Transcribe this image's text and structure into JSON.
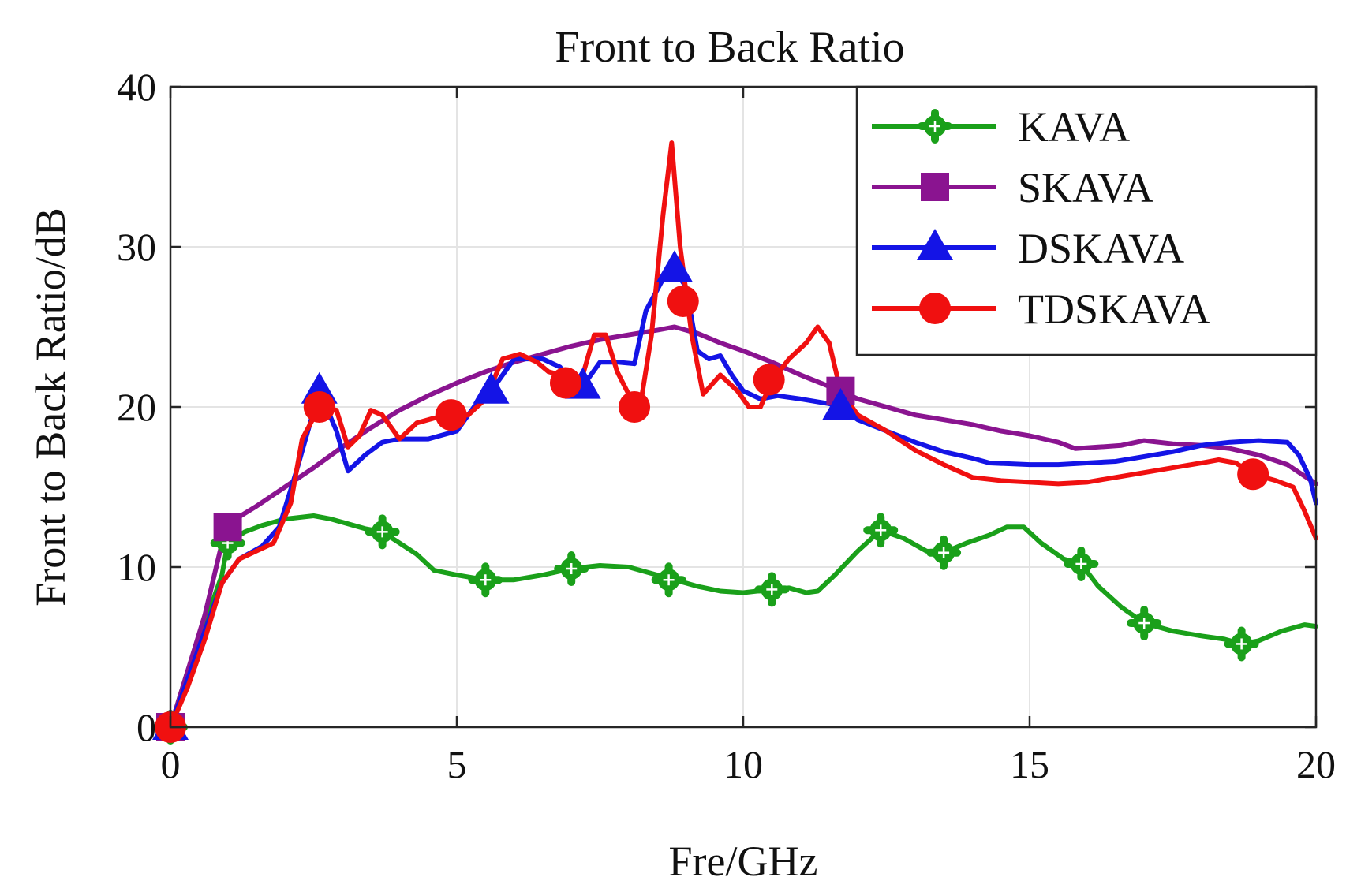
{
  "chart_data": {
    "type": "line",
    "title": "Front to Back Ratio",
    "xlabel": "Fre/GHz",
    "ylabel": "Front to Back Ratio/dB",
    "xlim": [
      0,
      20
    ],
    "ylim": [
      0,
      40
    ],
    "xticks": [
      0,
      5,
      10,
      15,
      20
    ],
    "yticks": [
      0,
      10,
      20,
      30,
      40
    ],
    "grid": true,
    "legend_position": "top-right",
    "series": [
      {
        "name": "KAVA",
        "color": "#1aa01a",
        "marker": "plus-circle",
        "x": [
          0,
          0.3,
          0.6,
          0.9,
          1.0,
          1.3,
          1.6,
          2.0,
          2.5,
          2.8,
          3.1,
          3.4,
          3.7,
          4.0,
          4.3,
          4.6,
          5.0,
          5.5,
          6.0,
          6.5,
          7.0,
          7.5,
          8.0,
          8.5,
          8.8,
          9.2,
          9.6,
          10.0,
          10.5,
          10.8,
          11.1,
          11.3,
          11.6,
          12.0,
          12.4,
          12.8,
          13.2,
          13.5,
          13.9,
          14.3,
          14.6,
          14.9,
          15.2,
          15.6,
          15.9,
          16.2,
          16.6,
          17.0,
          17.5,
          18.0,
          18.4,
          18.7,
          19.0,
          19.4,
          19.8,
          20.0
        ],
        "y": [
          0,
          3.5,
          6.5,
          9.5,
          11.5,
          12.2,
          12.6,
          13.0,
          13.2,
          13.0,
          12.7,
          12.4,
          12.2,
          11.5,
          10.8,
          9.8,
          9.5,
          9.2,
          9.2,
          9.5,
          9.9,
          10.1,
          10.0,
          9.5,
          9.2,
          8.8,
          8.5,
          8.4,
          8.6,
          8.7,
          8.4,
          8.5,
          9.5,
          11.0,
          12.3,
          11.8,
          11.0,
          10.9,
          11.5,
          12.0,
          12.5,
          12.5,
          11.5,
          10.5,
          10.2,
          8.8,
          7.5,
          6.5,
          6.0,
          5.7,
          5.5,
          5.2,
          5.4,
          6.0,
          6.4,
          6.3
        ],
        "markers_x": [
          0,
          1.0,
          3.7,
          5.5,
          7.0,
          8.7,
          10.5,
          12.4,
          13.5,
          15.9,
          17.0,
          18.7
        ],
        "markers_y": [
          0,
          11.5,
          12.2,
          9.2,
          9.9,
          9.2,
          8.6,
          12.3,
          10.9,
          10.2,
          6.5,
          5.2
        ]
      },
      {
        "name": "SKAVA",
        "color": "#8a1490",
        "marker": "square",
        "x": [
          0,
          0.3,
          0.6,
          0.9,
          1.0,
          1.5,
          2.0,
          2.5,
          3.0,
          3.5,
          4.0,
          4.5,
          5.0,
          5.5,
          6.0,
          6.5,
          7.0,
          7.5,
          8.0,
          8.5,
          8.8,
          9.2,
          9.6,
          10.0,
          10.5,
          11.0,
          11.7,
          12.0,
          12.5,
          13.0,
          13.5,
          14.0,
          14.5,
          15.0,
          15.5,
          15.8,
          16.2,
          16.6,
          17.0,
          17.5,
          18.0,
          18.5,
          19.0,
          19.5,
          20.0
        ],
        "y": [
          0,
          3.5,
          7.0,
          11.5,
          12.7,
          13.8,
          15.0,
          16.2,
          17.5,
          18.7,
          19.8,
          20.7,
          21.5,
          22.2,
          22.8,
          23.3,
          23.8,
          24.2,
          24.5,
          24.8,
          25.0,
          24.6,
          24.0,
          23.5,
          22.8,
          22.0,
          21.0,
          20.5,
          20.0,
          19.5,
          19.2,
          18.9,
          18.5,
          18.2,
          17.8,
          17.4,
          17.5,
          17.6,
          17.9,
          17.7,
          17.6,
          17.4,
          17.0,
          16.4,
          15.2
        ],
        "markers_x": [
          0,
          1.0,
          11.7
        ],
        "markers_y": [
          0,
          12.5,
          21.0
        ]
      },
      {
        "name": "DSKAVA",
        "color": "#1414e6",
        "marker": "triangle",
        "x": [
          0,
          0.3,
          0.6,
          0.9,
          1.2,
          1.6,
          1.9,
          2.2,
          2.6,
          2.9,
          3.1,
          3.4,
          3.7,
          4.0,
          4.5,
          5.0,
          5.3,
          5.6,
          6.0,
          6.5,
          6.8,
          7.0,
          7.2,
          7.5,
          7.8,
          8.1,
          8.3,
          8.6,
          8.8,
          9.0,
          9.2,
          9.4,
          9.6,
          9.8,
          10.0,
          10.3,
          10.6,
          11.0,
          11.5,
          11.7,
          12.0,
          12.5,
          13.0,
          13.5,
          14.0,
          14.3,
          15.0,
          15.5,
          16.0,
          16.5,
          17.0,
          17.5,
          18.0,
          18.5,
          19.0,
          19.5,
          19.7,
          19.9,
          20.0
        ],
        "y": [
          0,
          3.0,
          6.0,
          9.0,
          10.5,
          11.3,
          12.5,
          16.0,
          21.0,
          18.5,
          16.0,
          17.0,
          17.8,
          18.0,
          18.0,
          18.5,
          20.0,
          21.0,
          23.0,
          23.0,
          22.5,
          21.5,
          21.3,
          22.8,
          22.8,
          22.7,
          26.0,
          28.0,
          28.6,
          27.5,
          23.5,
          23.0,
          23.2,
          22.0,
          21.0,
          20.5,
          20.7,
          20.5,
          20.2,
          20.0,
          19.2,
          18.5,
          17.8,
          17.2,
          16.8,
          16.5,
          16.4,
          16.4,
          16.5,
          16.6,
          16.9,
          17.2,
          17.6,
          17.8,
          17.9,
          17.8,
          17.0,
          15.5,
          14.0
        ],
        "markers_x": [
          0,
          2.6,
          5.6,
          7.2,
          8.8,
          11.7
        ],
        "markers_y": [
          0,
          21.0,
          21.0,
          21.3,
          28.6,
          20.0
        ]
      },
      {
        "name": "TDSKAVA",
        "color": "#f01010",
        "marker": "circle",
        "x": [
          0,
          0.3,
          0.6,
          0.9,
          1.2,
          1.5,
          1.8,
          2.1,
          2.3,
          2.6,
          2.9,
          3.1,
          3.3,
          3.5,
          3.7,
          4.0,
          4.3,
          4.6,
          4.9,
          5.2,
          5.5,
          5.8,
          6.1,
          6.4,
          6.6,
          6.8,
          7.0,
          7.2,
          7.4,
          7.6,
          7.8,
          8.0,
          8.2,
          8.4,
          8.6,
          8.75,
          8.9,
          9.1,
          9.3,
          9.6,
          9.9,
          10.1,
          10.3,
          10.5,
          10.8,
          11.1,
          11.3,
          11.5,
          11.7,
          12.0,
          12.5,
          13.0,
          13.5,
          14.0,
          14.5,
          15.0,
          15.5,
          16.0,
          16.5,
          17.0,
          17.5,
          18.0,
          18.3,
          18.6,
          18.9,
          19.3,
          19.6,
          19.8,
          20.0
        ],
        "y": [
          0,
          2.5,
          5.5,
          9.0,
          10.5,
          11.0,
          11.5,
          14.0,
          18.0,
          20.0,
          19.8,
          17.5,
          18.2,
          19.8,
          19.5,
          18.0,
          19.0,
          19.3,
          19.5,
          19.5,
          20.5,
          23.0,
          23.3,
          22.8,
          22.2,
          22.0,
          21.5,
          22.0,
          24.5,
          24.5,
          22.2,
          20.8,
          20.0,
          24.5,
          32.0,
          36.5,
          30.0,
          24.5,
          20.8,
          22.0,
          21.0,
          20.0,
          20.0,
          21.6,
          23.0,
          24.0,
          25.0,
          24.0,
          21.0,
          19.5,
          18.5,
          17.3,
          16.4,
          15.6,
          15.4,
          15.3,
          15.2,
          15.3,
          15.6,
          15.9,
          16.2,
          16.5,
          16.7,
          16.5,
          15.8,
          15.4,
          15.0,
          13.5,
          11.8
        ],
        "markers_x": [
          0,
          2.6,
          4.9,
          6.9,
          8.1,
          8.95,
          10.45,
          18.9
        ],
        "markers_y": [
          0,
          20.0,
          19.5,
          21.5,
          20.0,
          26.6,
          21.7,
          15.8
        ]
      }
    ]
  }
}
